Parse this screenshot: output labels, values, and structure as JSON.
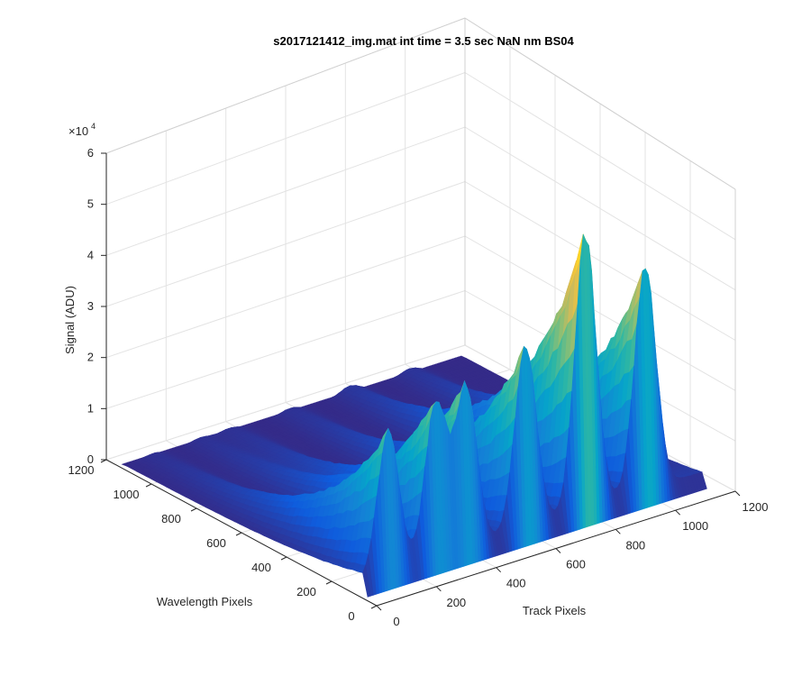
{
  "chart_data": {
    "type": "surface",
    "title": "s2017121412_img.mat int time = 3.5 sec  NaN nm BS04",
    "xlabel": "Track Pixels",
    "ylabel": "Wavelength Pixels",
    "zlabel": "Signal (ADU)",
    "z_exponent_base": "×10",
    "z_exponent_power": "4",
    "xlim": [
      0,
      1200
    ],
    "ylim": [
      0,
      1200
    ],
    "zlim": [
      0,
      60000
    ],
    "xticks": [
      "0",
      "200",
      "400",
      "600",
      "800",
      "1000",
      "1200"
    ],
    "yticks": [
      "0",
      "200",
      "400",
      "600",
      "800",
      "1000",
      "1200"
    ],
    "zticks": [
      "0",
      "1",
      "2",
      "3",
      "4",
      "5",
      "6"
    ],
    "grid": true,
    "colormap": [
      "#352a87",
      "#0f5cdd",
      "#1481d6",
      "#06a4ca",
      "#2eb7a4",
      "#87bf77",
      "#d1bb59",
      "#fec832",
      "#f9fb0e"
    ],
    "peaks": [
      {
        "track_center": 100,
        "peak_signal": 32000
      },
      {
        "track_center": 260,
        "peak_signal": 35000
      },
      {
        "track_center": 360,
        "peak_signal": 36000
      },
      {
        "track_center": 560,
        "peak_signal": 40000
      },
      {
        "track_center": 760,
        "peak_signal": 60000
      },
      {
        "track_center": 960,
        "peak_signal": 48000
      }
    ],
    "baseline_signal": 3000
  }
}
